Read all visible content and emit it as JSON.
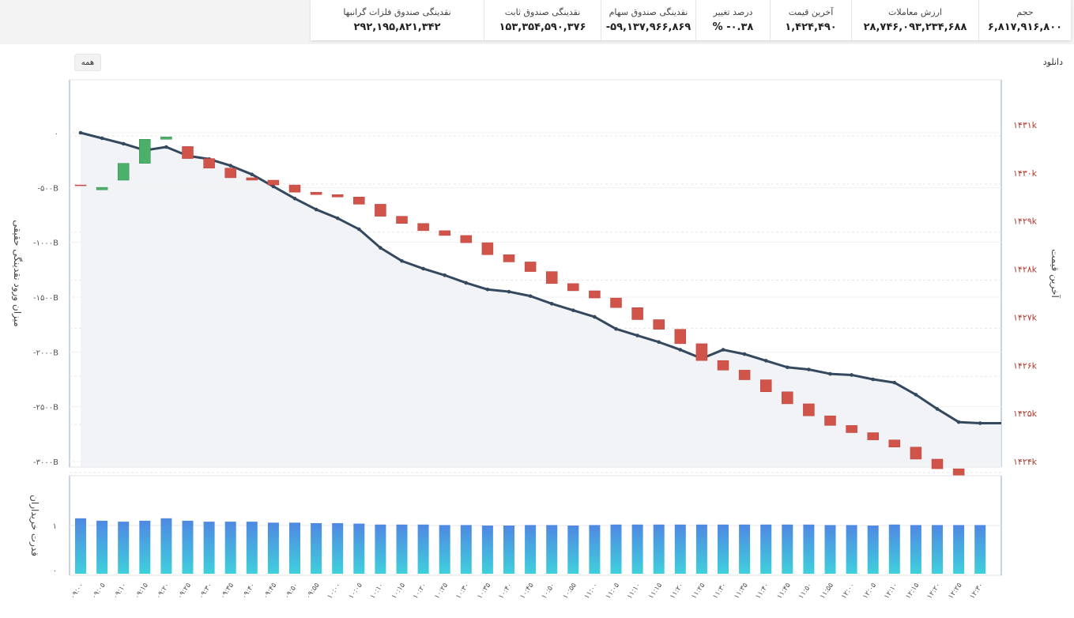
{
  "header": {
    "stats": [
      {
        "label": "حجم",
        "value": "۶,۸۱۷,۹۱۶,۸۰۰"
      },
      {
        "label": "ارزش معاملات",
        "value": "۲۸,۷۴۶,۰۹۳,۲۳۴,۶۸۸"
      },
      {
        "label": "آخرین قیمت",
        "value": "۱,۴۲۴,۴۹۰"
      },
      {
        "label": "درصد تغییر",
        "value": "% -۰.۳۸"
      },
      {
        "label": "نقدینگی صندوق سهام",
        "value": "-۵۹,۱۳۷,۹۶۶,۸۶۹"
      },
      {
        "label": "نقدینگی صندوق ثابت",
        "value": "۱۵۳,۳۵۴,۵۹۰,۳۷۶"
      },
      {
        "label": "نقدینگی صندوق فلزات گرانبها",
        "value": "۲۹۲,۱۹۵,۸۲۱,۳۴۲"
      }
    ]
  },
  "controls": {
    "range_button": "همه",
    "download": "دانلود"
  },
  "colors": {
    "line": "#34495e",
    "up": "#4caf6a",
    "down": "#d1544a",
    "bar_top": "#4f88e3",
    "bar_bottom": "#3fd0dc",
    "axis_right": "#b03a2e",
    "axis_left": "#555555"
  },
  "chart_data": {
    "type": "line+candlestick+bar",
    "x": [
      "۰۹:۰۰",
      "۰۹:۰۵",
      "۰۹:۱۰",
      "۰۹:۱۵",
      "۰۹:۲۰",
      "۰۹:۲۵",
      "۰۹:۳۰",
      "۰۹:۳۵",
      "۰۹:۴۰",
      "۰۹:۴۵",
      "۰۹:۵۰",
      "۰۹:۵۵",
      "۱۰:۰۰",
      "۱۰:۰۵",
      "۱۰:۱۰",
      "۱۰:۱۵",
      "۱۰:۲۰",
      "۱۰:۲۵",
      "۱۰:۳۰",
      "۱۰:۳۵",
      "۱۰:۴۰",
      "۱۰:۴۵",
      "۱۰:۵۰",
      "۱۰:۵۵",
      "۱۱:۰۰",
      "۱۱:۰۵",
      "۱۱:۱۰",
      "۱۱:۱۵",
      "۱۱:۲۰",
      "۱۱:۲۵",
      "۱۱:۳۰",
      "۱۱:۳۵",
      "۱۱:۴۰",
      "۱۱:۴۵",
      "۱۱:۵۰",
      "۱۱:۵۵",
      "۱۲:۰۰",
      "۱۲:۰۵",
      "۱۲:۱۰",
      "۱۲:۱۵",
      "۱۲:۲۰",
      "۱۲:۲۵",
      "۱۲:۳۰"
    ],
    "left_axis": {
      "label": "میزان ورود نقدینگی حقیقی",
      "ticks": [
        "۰",
        "-۵۰۰B",
        "-۱۰۰۰B",
        "-۱۵۰۰B",
        "-۲۰۰۰B",
        "-۲۵۰۰B",
        "-۳۰۰۰B"
      ],
      "ylim": [
        -3000,
        0
      ]
    },
    "right_axis": {
      "label": "آخرین قیمت",
      "ticks": [
        "۱۴۳۱k",
        "۱۴۳۰k",
        "۱۴۲۹k",
        "۱۴۲۸k",
        "۱۴۲۷k",
        "۱۴۲۶k",
        "۱۴۲۵k",
        "۱۴۲۴k"
      ],
      "ylim": [
        1424,
        1431
      ]
    },
    "bottom_axis": {
      "label": "قدرت خریداران",
      "ticks": [
        "۱",
        "۰"
      ],
      "ylim": [
        0,
        1
      ]
    },
    "series": [
      {
        "values": [
          0,
          -50,
          -100,
          -160,
          -130,
          -210,
          -240,
          -300,
          -380,
          -490,
          -600,
          -700,
          -780,
          -880,
          -1050,
          -1170,
          -1240,
          -1300,
          -1370,
          -1430,
          -1450,
          -1490,
          -1560,
          -1620,
          -1680,
          -1790,
          -1850,
          -1910,
          -1980,
          -2060,
          -1980,
          -2020,
          -2080,
          -2140,
          -2160,
          -2200,
          -2210,
          -2250,
          -2280,
          -2390,
          -2520,
          -2640,
          -2650
        ]
      },
      {
        "open": [
          1429.75,
          1429.65,
          1429.85,
          1430.2,
          1430.7,
          1430.55,
          1430.3,
          1430.1,
          1429.9,
          1429.85,
          1429.75,
          1429.6,
          1429.55,
          1429.5,
          1429.35,
          1429.1,
          1428.95,
          1428.8,
          1428.7,
          1428.55,
          1428.3,
          1428.15,
          1427.95,
          1427.7,
          1427.55,
          1427.4,
          1427.2,
          1426.95,
          1426.75,
          1426.45,
          1426.1,
          1425.9,
          1425.7,
          1425.45,
          1425.2,
          1424.95,
          1424.75,
          1424.6,
          1424.45,
          1424.3,
          1424.05,
          1423.85,
          1423.6
        ],
        "close": [
          1429.75,
          1429.7,
          1430.2,
          1430.7,
          1430.75,
          1430.3,
          1430.1,
          1429.9,
          1429.85,
          1429.75,
          1429.6,
          1429.55,
          1429.5,
          1429.35,
          1429.1,
          1428.95,
          1428.8,
          1428.7,
          1428.55,
          1428.3,
          1428.15,
          1427.95,
          1427.7,
          1427.55,
          1427.4,
          1427.2,
          1426.95,
          1426.75,
          1426.45,
          1426.1,
          1425.9,
          1425.7,
          1425.45,
          1425.2,
          1424.95,
          1424.75,
          1424.6,
          1424.45,
          1424.3,
          1424.05,
          1423.85,
          1423.6,
          1423.5
        ]
      },
      {
        "values": [
          1.15,
          1.1,
          1.08,
          1.1,
          1.15,
          1.1,
          1.08,
          1.08,
          1.08,
          1.06,
          1.06,
          1.05,
          1.05,
          1.04,
          1.02,
          1.02,
          1.02,
          1.01,
          1.01,
          1.0,
          1.0,
          1.01,
          1.01,
          1.0,
          1.01,
          1.02,
          1.02,
          1.02,
          1.02,
          1.02,
          1.02,
          1.02,
          1.02,
          1.02,
          1.02,
          1.01,
          1.01,
          1.0,
          1.02,
          1.01,
          1.01,
          1.01,
          1.01
        ]
      }
    ]
  }
}
